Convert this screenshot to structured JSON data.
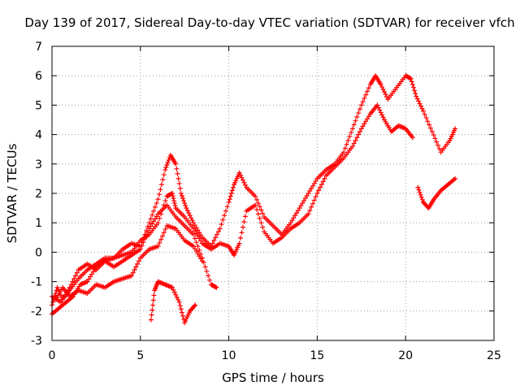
{
  "title": "Day 139 of 2017, Sidereal Day-to-day VTEC variation (SDTVAR) for receiver vfch",
  "xlabel": "GPS time / hours",
  "ylabel": "SDTVAR / TECUs",
  "xticks": [
    "0",
    "5",
    "10",
    "15",
    "20",
    "25"
  ],
  "yticks": [
    "7",
    "6",
    "5",
    "4",
    "3",
    "2",
    "1",
    "0",
    "-1",
    "-2",
    "-3"
  ],
  "colors": {
    "series": "#ff0000",
    "grid": "#a0a0a0",
    "frame": "#000000"
  },
  "chart_data": {
    "type": "scatter",
    "marker": "plus",
    "xlim": [
      0,
      25
    ],
    "ylim": [
      -3,
      7
    ],
    "grid": true,
    "series": [
      {
        "points": [
          [
            0.0,
            -1.8
          ],
          [
            0.3,
            -1.2
          ],
          [
            0.6,
            -1.6
          ],
          [
            1.0,
            -1.3
          ],
          [
            1.5,
            -0.9
          ],
          [
            2.0,
            -0.6
          ],
          [
            2.5,
            -0.4
          ],
          [
            3.0,
            -0.2
          ],
          [
            3.5,
            -0.2
          ],
          [
            4.0,
            0.1
          ],
          [
            4.5,
            0.3
          ],
          [
            5.0,
            0.2
          ],
          [
            5.5,
            1.0
          ],
          [
            6.0,
            1.8
          ],
          [
            6.4,
            2.8
          ],
          [
            6.7,
            3.3
          ],
          [
            7.0,
            3.0
          ],
          [
            7.3,
            2.0
          ],
          [
            7.6,
            1.5
          ],
          [
            8.0,
            1.0
          ],
          [
            8.5,
            0.5
          ],
          [
            9.0,
            0.2
          ],
          [
            9.5,
            0.8
          ],
          [
            10.0,
            1.7
          ],
          [
            10.3,
            2.3
          ],
          [
            10.6,
            2.7
          ],
          [
            11.0,
            2.2
          ],
          [
            11.5,
            1.9
          ],
          [
            12.0,
            1.2
          ],
          [
            12.5,
            0.9
          ],
          [
            13.0,
            0.6
          ],
          [
            13.5,
            1.0
          ],
          [
            14.0,
            1.5
          ],
          [
            14.5,
            2.0
          ],
          [
            15.0,
            2.5
          ],
          [
            15.5,
            2.8
          ],
          [
            16.0,
            3.0
          ],
          [
            16.5,
            3.4
          ],
          [
            17.0,
            4.2
          ],
          [
            17.5,
            5.0
          ],
          [
            18.0,
            5.7
          ],
          [
            18.3,
            6.0
          ],
          [
            18.6,
            5.7
          ],
          [
            19.0,
            5.2
          ],
          [
            19.5,
            5.6
          ],
          [
            20.0,
            6.0
          ],
          [
            20.3,
            5.9
          ],
          [
            20.6,
            5.3
          ],
          [
            21.0,
            4.8
          ],
          [
            21.5,
            4.1
          ],
          [
            22.0,
            3.4
          ],
          [
            22.5,
            3.8
          ],
          [
            22.8,
            4.2
          ]
        ]
      },
      {
        "points": [
          [
            0.0,
            -1.5
          ],
          [
            0.5,
            -1.7
          ],
          [
            1.0,
            -1.2
          ],
          [
            1.5,
            -0.6
          ],
          [
            2.0,
            -0.4
          ],
          [
            2.5,
            -0.6
          ],
          [
            3.0,
            -0.3
          ],
          [
            3.5,
            -0.2
          ],
          [
            4.0,
            -0.1
          ],
          [
            4.5,
            0.0
          ],
          [
            5.0,
            0.4
          ],
          [
            5.5,
            0.6
          ],
          [
            6.0,
            1.0
          ],
          [
            6.5,
            1.9
          ],
          [
            6.8,
            2.0
          ],
          [
            7.0,
            1.5
          ],
          [
            7.5,
            1.2
          ],
          [
            8.0,
            0.8
          ],
          [
            8.5,
            0.3
          ],
          [
            9.0,
            0.1
          ],
          [
            9.5,
            0.3
          ],
          [
            10.0,
            0.2
          ],
          [
            10.3,
            -0.1
          ],
          [
            10.6,
            0.3
          ],
          [
            11.0,
            1.4
          ],
          [
            11.5,
            1.6
          ],
          [
            12.0,
            0.7
          ],
          [
            12.5,
            0.3
          ],
          [
            13.0,
            0.5
          ],
          [
            13.5,
            0.8
          ],
          [
            14.0,
            1.0
          ],
          [
            14.5,
            1.3
          ],
          [
            15.0,
            2.0
          ],
          [
            15.5,
            2.6
          ],
          [
            16.0,
            2.9
          ],
          [
            16.5,
            3.2
          ],
          [
            17.0,
            3.6
          ],
          [
            17.5,
            4.2
          ],
          [
            18.0,
            4.7
          ],
          [
            18.4,
            5.0
          ],
          [
            18.8,
            4.5
          ],
          [
            19.2,
            4.1
          ],
          [
            19.6,
            4.3
          ],
          [
            20.0,
            4.2
          ],
          [
            20.4,
            3.9
          ]
        ]
      },
      {
        "points": [
          [
            0.0,
            -2.1
          ],
          [
            0.4,
            -1.9
          ],
          [
            0.8,
            -1.7
          ],
          [
            1.2,
            -1.5
          ],
          [
            1.6,
            -1.1
          ],
          [
            2.0,
            -1.0
          ],
          [
            2.5,
            -0.5
          ],
          [
            3.0,
            -0.3
          ],
          [
            3.5,
            -0.5
          ],
          [
            4.0,
            -0.3
          ],
          [
            4.5,
            -0.1
          ],
          [
            5.0,
            0.1
          ],
          [
            5.5,
            0.8
          ],
          [
            6.0,
            1.3
          ],
          [
            6.5,
            1.6
          ],
          [
            7.0,
            1.2
          ],
          [
            7.5,
            0.9
          ],
          [
            8.0,
            0.6
          ],
          [
            8.5,
            -0.2
          ],
          [
            9.0,
            -1.1
          ],
          [
            9.3,
            -1.2
          ]
        ]
      },
      {
        "points": [
          [
            0.2,
            -1.6
          ],
          [
            0.6,
            -1.2
          ],
          [
            1.0,
            -1.5
          ],
          [
            1.5,
            -1.3
          ],
          [
            2.0,
            -1.4
          ],
          [
            2.5,
            -1.1
          ],
          [
            3.0,
            -1.2
          ],
          [
            3.5,
            -1.0
          ],
          [
            4.0,
            -0.9
          ],
          [
            4.5,
            -0.8
          ],
          [
            5.0,
            -0.2
          ],
          [
            5.5,
            0.1
          ],
          [
            6.0,
            0.2
          ],
          [
            6.5,
            0.9
          ],
          [
            7.0,
            0.8
          ],
          [
            7.5,
            0.4
          ],
          [
            8.0,
            0.2
          ],
          [
            8.5,
            -0.3
          ]
        ]
      },
      {
        "points": [
          [
            5.6,
            -2.3
          ],
          [
            5.8,
            -1.3
          ],
          [
            6.0,
            -1.0
          ],
          [
            6.4,
            -1.1
          ],
          [
            6.8,
            -1.2
          ],
          [
            7.2,
            -1.7
          ],
          [
            7.5,
            -2.4
          ],
          [
            7.8,
            -2.0
          ],
          [
            8.1,
            -1.8
          ]
        ]
      },
      {
        "points": [
          [
            20.7,
            2.2
          ],
          [
            21.0,
            1.7
          ],
          [
            21.3,
            1.5
          ],
          [
            21.6,
            1.8
          ],
          [
            22.0,
            2.1
          ],
          [
            22.4,
            2.3
          ],
          [
            22.8,
            2.5
          ]
        ]
      }
    ]
  }
}
